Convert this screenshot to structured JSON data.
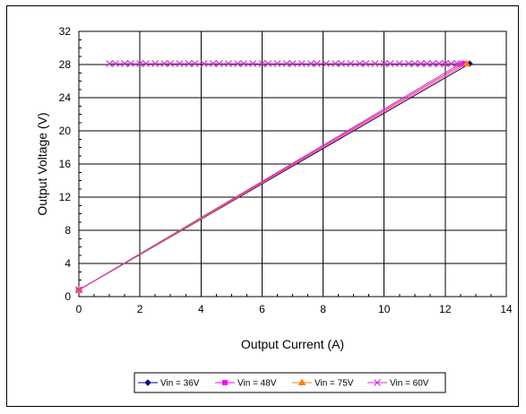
{
  "chart_data": {
    "type": "line",
    "xlabel": "Output Current (A)",
    "ylabel": "Output Voltage (V)",
    "xlim": [
      0,
      14
    ],
    "ylim": [
      0,
      32
    ],
    "x_ticks": [
      "0",
      "2",
      "4",
      "6",
      "8",
      "10",
      "12",
      "14"
    ],
    "y_ticks": [
      "0",
      "4",
      "8",
      "12",
      "16",
      "20",
      "24",
      "28",
      "32"
    ],
    "grid": true,
    "legend_position": "bottom",
    "series": [
      {
        "name": "Vin = 36V",
        "color": "#000080",
        "marker": "diamond",
        "points": [
          [
            0,
            0.8
          ],
          [
            12.8,
            28.1
          ]
        ]
      },
      {
        "name": "Vin = 48V",
        "color": "#ff00ff",
        "marker": "square",
        "points": [
          [
            0,
            0.8
          ],
          [
            12.6,
            28.1
          ]
        ]
      },
      {
        "name": "Vin = 75V",
        "color": "#ff8000",
        "marker": "triangle",
        "points": [
          [
            0,
            0.8
          ],
          [
            12.7,
            28.1
          ]
        ]
      },
      {
        "name": "Vin = 60V",
        "color": "#cc33cc",
        "marker": "x",
        "points": [
          [
            0,
            0.8
          ],
          [
            12.5,
            28.1
          ],
          [
            12.4,
            28.1
          ],
          [
            12.2,
            28.1
          ],
          [
            12.0,
            28.1
          ],
          [
            11.8,
            28.1
          ],
          [
            11.6,
            28.1
          ],
          [
            11.4,
            28.1
          ],
          [
            11.2,
            28.1
          ],
          [
            11.0,
            28.1
          ],
          [
            10.8,
            28.1
          ],
          [
            10.5,
            28.1
          ],
          [
            10.2,
            28.1
          ],
          [
            10.0,
            28.1
          ],
          [
            9.7,
            28.1
          ],
          [
            9.4,
            28.1
          ],
          [
            9.2,
            28.1
          ],
          [
            8.9,
            28.1
          ],
          [
            8.6,
            28.1
          ],
          [
            8.4,
            28.1
          ],
          [
            8.1,
            28.1
          ],
          [
            7.8,
            28.1
          ],
          [
            7.6,
            28.1
          ],
          [
            7.3,
            28.1
          ],
          [
            7.0,
            28.1
          ],
          [
            6.8,
            28.1
          ],
          [
            6.5,
            28.1
          ],
          [
            6.2,
            28.1
          ],
          [
            6.0,
            28.1
          ],
          [
            5.7,
            28.1
          ],
          [
            5.4,
            28.1
          ],
          [
            5.2,
            28.1
          ],
          [
            4.9,
            28.1
          ],
          [
            4.6,
            28.1
          ],
          [
            4.4,
            28.1
          ],
          [
            4.1,
            28.1
          ],
          [
            3.8,
            28.1
          ],
          [
            3.6,
            28.1
          ],
          [
            3.3,
            28.1
          ],
          [
            3.0,
            28.1
          ],
          [
            2.8,
            28.1
          ],
          [
            2.5,
            28.1
          ],
          [
            2.2,
            28.1
          ],
          [
            2.0,
            28.1
          ],
          [
            1.7,
            28.1
          ],
          [
            1.5,
            28.1
          ],
          [
            1.2,
            28.1
          ],
          [
            1.0,
            28.1
          ]
        ]
      }
    ]
  }
}
